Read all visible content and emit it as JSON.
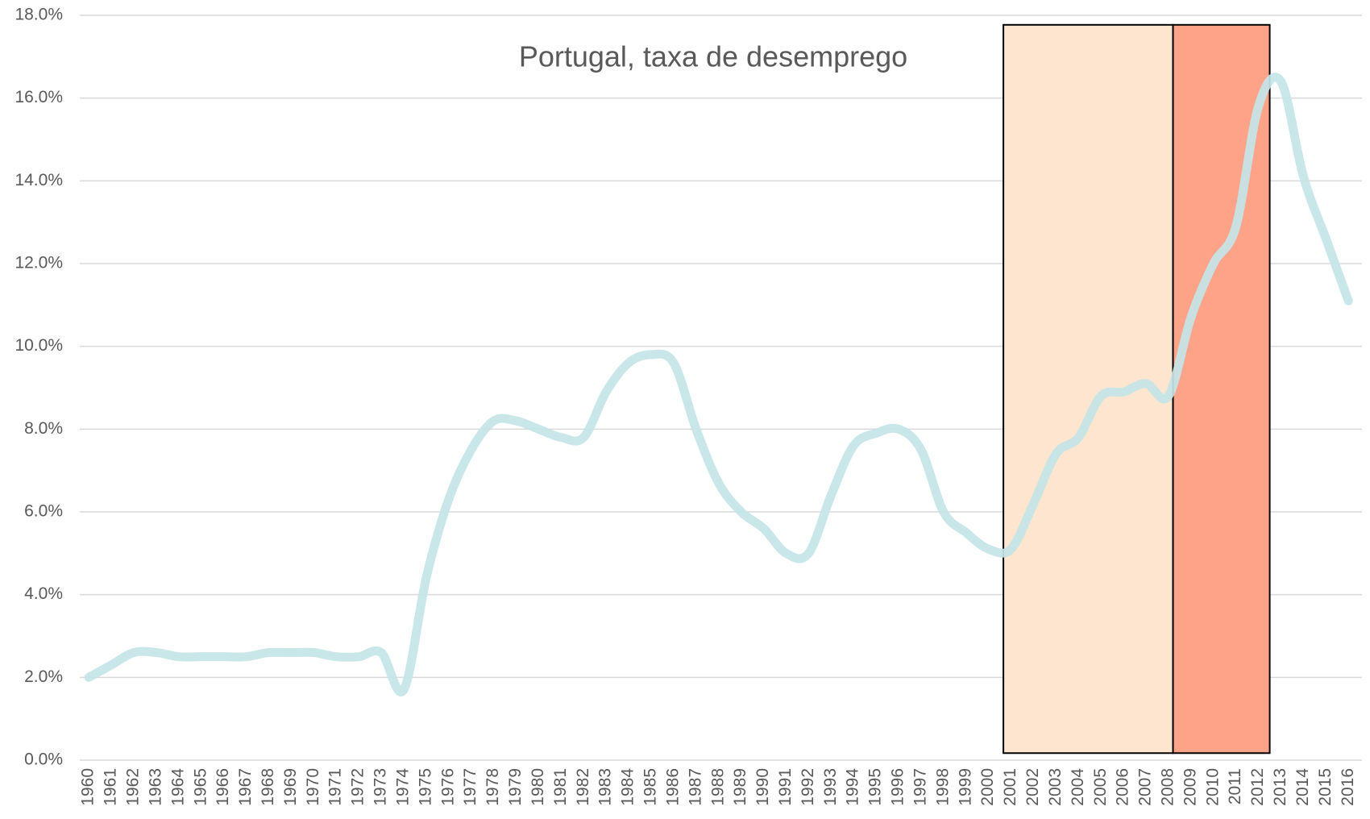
{
  "chart_data": {
    "type": "line",
    "title": "Portugal, taxa de desemprego",
    "x": [
      1960,
      1961,
      1962,
      1963,
      1964,
      1965,
      1966,
      1967,
      1968,
      1969,
      1970,
      1971,
      1972,
      1973,
      1974,
      1975,
      1976,
      1977,
      1978,
      1979,
      1980,
      1981,
      1982,
      1983,
      1984,
      1985,
      1986,
      1987,
      1988,
      1989,
      1990,
      1991,
      1992,
      1993,
      1994,
      1995,
      1996,
      1997,
      1998,
      1999,
      2000,
      2001,
      2002,
      2003,
      2004,
      2005,
      2006,
      2007,
      2008,
      2009,
      2010,
      2011,
      2012,
      2013,
      2014,
      2015,
      2016
    ],
    "series": [
      {
        "color": "#c4e4e7",
        "values": [
          2.0,
          2.3,
          2.6,
          2.6,
          2.5,
          2.5,
          2.5,
          2.5,
          2.6,
          2.6,
          2.6,
          2.5,
          2.5,
          2.6,
          1.7,
          4.4,
          6.3,
          7.5,
          8.2,
          8.2,
          8.0,
          7.8,
          7.8,
          8.9,
          9.6,
          9.8,
          9.6,
          8.0,
          6.7,
          6.0,
          5.6,
          5.0,
          5.0,
          6.4,
          7.6,
          7.9,
          8.0,
          7.5,
          6.0,
          5.5,
          5.1,
          5.1,
          6.2,
          7.4,
          7.8,
          8.8,
          8.9,
          9.1,
          8.8,
          10.7,
          12.0,
          12.9,
          15.8,
          16.4,
          14.1,
          12.6,
          11.1
        ]
      }
    ],
    "xlim": [
      1959.6,
      2016.6
    ],
    "ylim": [
      0,
      18
    ],
    "yticks": [
      {
        "value": 0,
        "label": "0.0%"
      },
      {
        "value": 2,
        "label": "2.0%"
      },
      {
        "value": 4,
        "label": "4.0%"
      },
      {
        "value": 6,
        "label": "6.0%"
      },
      {
        "value": 8,
        "label": "8.0%"
      },
      {
        "value": 10,
        "label": "10.0%"
      },
      {
        "value": 12,
        "label": "12.0%"
      },
      {
        "value": 14,
        "label": "14.0%"
      },
      {
        "value": 16,
        "label": "16.0%"
      },
      {
        "value": 18,
        "label": "18.0%"
      }
    ],
    "grid": true,
    "highlights": [
      {
        "x": [
          2000.66,
          2008.2
        ],
        "y": [
          0.17,
          17.77
        ],
        "color": "#fde5cf"
      },
      {
        "x": [
          2008.2,
          2012.5
        ],
        "y": [
          0.17,
          17.77
        ],
        "color": "#fea387"
      }
    ]
  }
}
